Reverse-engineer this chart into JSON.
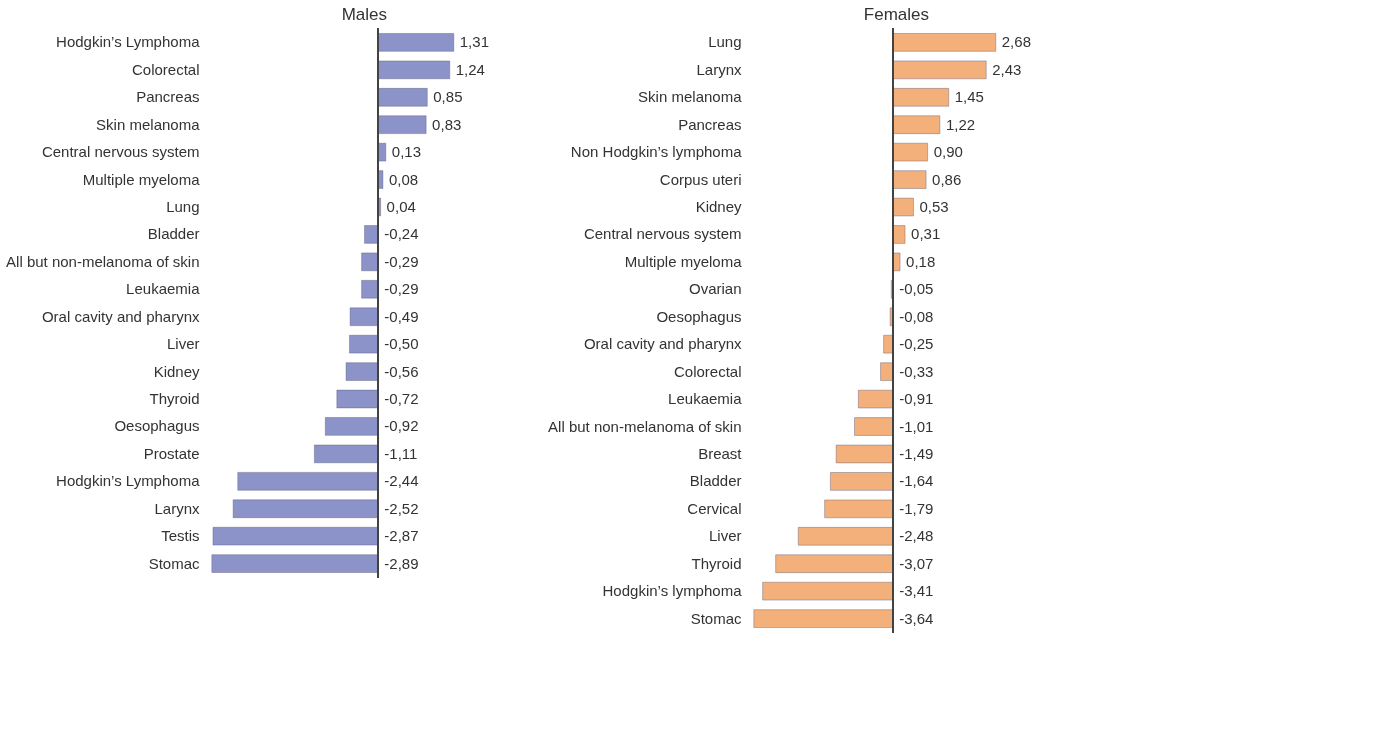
{
  "chart_data": [
    {
      "type": "bar",
      "orientation": "horizontal",
      "title": "Males",
      "categories": [
        "Hodgkin’s Lymphoma",
        "Colorectal",
        "Pancreas",
        "Skin melanoma",
        "Central nervous system",
        "Multiple myeloma",
        "Lung",
        "Bladder",
        "All but non-melanoma of skin",
        "Leukaemia",
        "Oral cavity and pharynx",
        "Liver",
        "Kidney",
        "Thyroid",
        "Oesophagus",
        "Prostate",
        "Hodgkin’s Lymphoma",
        "Larynx",
        "Testis",
        "Stomac"
      ],
      "series": [
        {
          "color": "#8b93c9",
          "values": [
            1.31,
            1.24,
            0.85,
            0.83,
            0.13,
            0.08,
            0.04,
            -0.24,
            -0.29,
            -0.29,
            -0.49,
            -0.5,
            -0.56,
            -0.72,
            -0.92,
            -1.11,
            -2.44,
            -2.52,
            -2.87,
            -2.89
          ],
          "value_labels": [
            "1,31",
            "1,24",
            "0,85",
            "0,83",
            "0,13",
            "0,08",
            "0,04",
            "-0,24",
            "-0,29",
            "-0,29",
            "-0,49",
            "-0,50",
            "-0,56",
            "-0,72",
            "-0,92",
            "-1,11",
            "-2,44",
            "-2,52",
            "-2,87",
            "-2,89"
          ]
        }
      ]
    },
    {
      "type": "bar",
      "orientation": "horizontal",
      "title": "Females",
      "categories": [
        "Lung",
        "Larynx",
        "Skin melanoma",
        "Pancreas",
        "Non Hodgkin’s lymphoma",
        "Corpus uteri",
        "Kidney",
        "Central nervous system",
        "Multiple myeloma",
        "Ovarian",
        "Oesophagus",
        "Oral cavity and pharynx",
        "Colorectal",
        "Leukaemia",
        "All but non-melanoma of skin",
        "Breast",
        "Bladder",
        "Cervical",
        "Liver",
        "Thyroid",
        "Hodgkin’s lymphoma",
        "Stomac"
      ],
      "series": [
        {
          "color": "#f4b07a",
          "values": [
            2.68,
            2.43,
            1.45,
            1.22,
            0.9,
            0.86,
            0.53,
            0.31,
            0.18,
            -0.05,
            -0.08,
            -0.25,
            -0.33,
            -0.91,
            -1.01,
            -1.49,
            -1.64,
            -1.79,
            -2.48,
            -3.07,
            -3.41,
            -3.64
          ],
          "value_labels": [
            "2,68",
            "2,43",
            "1,45",
            "1,22",
            "0,90",
            "0,86",
            "0,53",
            "0,31",
            "0,18",
            "-0,05",
            "-0,08",
            "-0,25",
            "-0,33",
            "-0,91",
            "-1,01",
            "-1,49",
            "-1,64",
            "-1,79",
            "-2,48",
            "-3,07",
            "-3,41",
            "-3,64"
          ]
        }
      ]
    }
  ]
}
